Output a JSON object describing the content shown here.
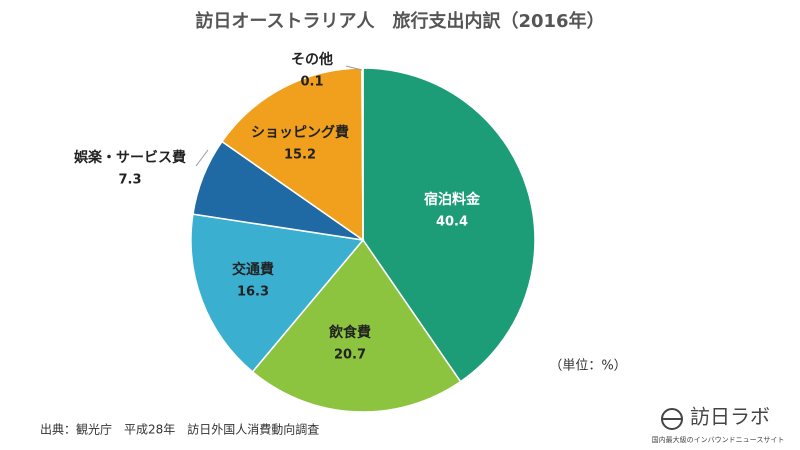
{
  "chart_data": {
    "type": "pie",
    "title": "訪日オーストラリア人　旅行支出内訳（2016年）",
    "categories": [
      "宿泊料金",
      "飲食費",
      "交通費",
      "娯楽・サービス費",
      "ショッピング費",
      "その他"
    ],
    "values": [
      40.4,
      20.7,
      16.3,
      7.3,
      15.2,
      0.1
    ],
    "colors": [
      "#1d9c78",
      "#8cc43f",
      "#3aafd0",
      "#1f6aa5",
      "#f0a01c",
      "#c8c8c8"
    ],
    "unit_note": "（単位：%）"
  },
  "source": "出典：観光庁　平成28年　訪日外国人消費動向調査",
  "logo": {
    "name": "訪日ラボ",
    "tagline": "国内最大級のインバウンドニュースサイト"
  }
}
